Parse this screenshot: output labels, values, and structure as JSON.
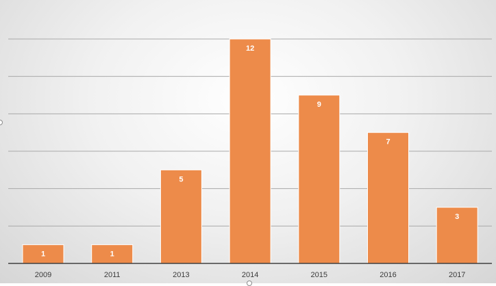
{
  "chart_data": {
    "type": "bar",
    "categories": [
      "2009",
      "2011",
      "2013",
      "2014",
      "2015",
      "2016",
      "2017"
    ],
    "values": [
      1,
      1,
      5,
      12,
      9,
      7,
      3
    ],
    "ylim": [
      0,
      12
    ],
    "grid": true,
    "legend": "none",
    "bar_color": "#ED8B4A",
    "label_color": "#ffffff",
    "gridline_color": "#a9a9a9"
  }
}
